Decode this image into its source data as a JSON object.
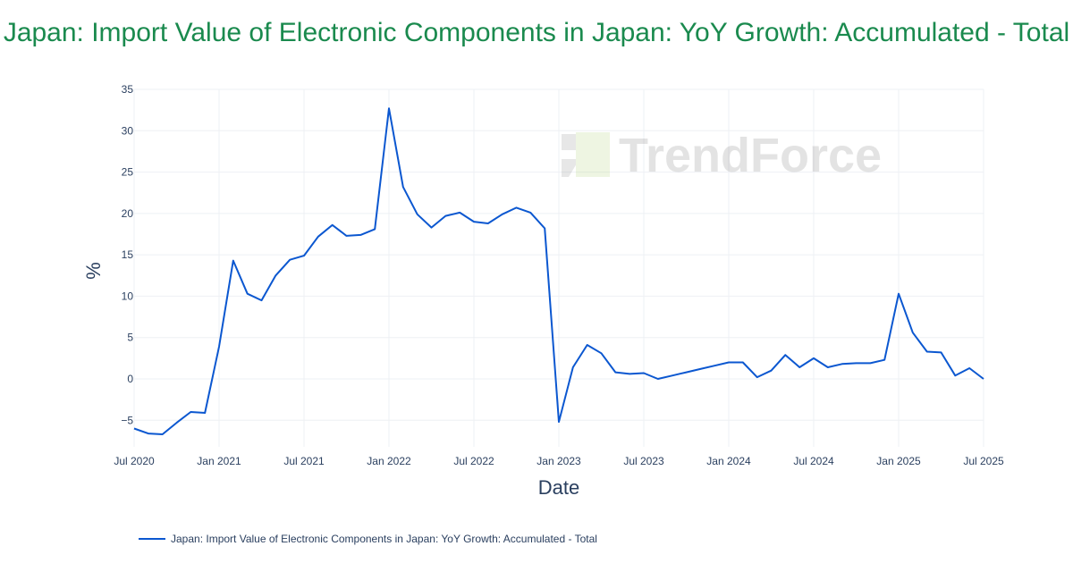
{
  "title": "Japan: Import Value of Electronic Components in Japan: YoY Growth: Accumulated - Total",
  "watermark": "TrendForce",
  "chart_data": {
    "type": "line",
    "title": "Japan: Import Value of Electronic Components in Japan: YoY Growth: Accumulated - Total",
    "xlabel": "Date",
    "ylabel": "%",
    "ylim": [
      -8,
      35
    ],
    "grid": true,
    "legend_position": "bottom-left",
    "line_color": "#0b57d0",
    "x_ticks": [
      "Jul 2020",
      "Jan 2021",
      "Jul 2021",
      "Jan 2022",
      "Jul 2022",
      "Jan 2023",
      "Jul 2023",
      "Jan 2024",
      "Jul 2024",
      "Jan 2025",
      "Jul 2025"
    ],
    "y_ticks": [
      -5,
      0,
      5,
      10,
      15,
      20,
      25,
      30,
      35
    ],
    "series": [
      {
        "name": "Japan: Import Value of Electronic Components in Japan: YoY Growth: Accumulated - Total",
        "x": [
          "2020-07",
          "2020-08",
          "2020-09",
          "2020-10",
          "2020-11",
          "2020-12",
          "2021-01",
          "2021-02",
          "2021-03",
          "2021-04",
          "2021-05",
          "2021-06",
          "2021-07",
          "2021-08",
          "2021-09",
          "2021-10",
          "2021-11",
          "2021-12",
          "2022-01",
          "2022-02",
          "2022-03",
          "2022-04",
          "2022-05",
          "2022-06",
          "2022-07",
          "2022-08",
          "2022-09",
          "2022-10",
          "2022-11",
          "2022-12",
          "2023-01",
          "2023-02",
          "2023-03",
          "2023-04",
          "2023-05",
          "2023-06",
          "2023-07",
          "2023-08",
          "2023-09",
          "2023-10",
          "2023-11",
          "2023-12",
          "2024-01",
          "2024-02",
          "2024-03",
          "2024-04",
          "2024-05",
          "2024-06",
          "2024-07",
          "2024-08",
          "2024-09",
          "2024-10",
          "2024-11",
          "2024-12",
          "2025-01",
          "2025-02",
          "2025-03",
          "2025-04",
          "2025-05",
          "2025-06",
          "2025-07"
        ],
        "values": [
          -6.0,
          -6.6,
          -6.7,
          -5.3,
          -4.0,
          -4.1,
          3.9,
          14.3,
          10.3,
          9.5,
          12.5,
          14.4,
          14.9,
          17.2,
          18.6,
          17.3,
          17.4,
          18.1,
          32.7,
          23.2,
          19.9,
          18.3,
          19.7,
          20.1,
          19.0,
          18.8,
          19.9,
          20.7,
          20.1,
          18.2,
          -5.2,
          1.4,
          4.1,
          3.1,
          0.8,
          0.6,
          0.7,
          0.0,
          0.4,
          0.8,
          1.2,
          1.6,
          2.0,
          2.0,
          0.2,
          1.0,
          2.9,
          1.4,
          2.5,
          1.4,
          1.8,
          1.9,
          1.9,
          2.3,
          10.3,
          5.6,
          3.3,
          3.2,
          0.4,
          1.3,
          0.0
        ]
      }
    ]
  }
}
